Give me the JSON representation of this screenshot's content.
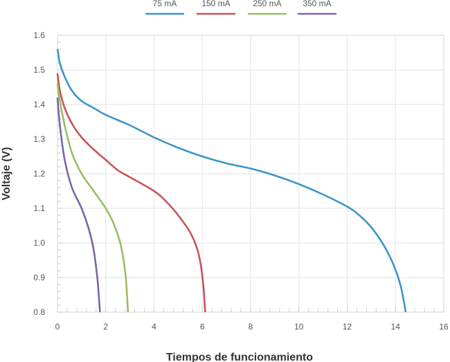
{
  "chart_data": {
    "type": "line",
    "xlabel": "Tiempos de funcionamiento",
    "ylabel": "Voltaje (V)",
    "xlim": [
      0,
      16
    ],
    "ylim": [
      0.8,
      1.6
    ],
    "x_ticks": [
      "0",
      "2",
      "4",
      "6",
      "8",
      "10",
      "12",
      "14",
      "16"
    ],
    "y_ticks": [
      "0.8",
      "0.9",
      "1.0",
      "1.1",
      "1.2",
      "1.3",
      "1.4",
      "1.5",
      "1.6"
    ],
    "grid": true,
    "legend_position": "top",
    "series": [
      {
        "name": "75 mA",
        "color": "#3b95c9",
        "x": [
          0,
          0.1,
          0.3,
          0.6,
          1,
          1.5,
          2,
          3,
          4,
          5,
          6,
          7,
          8,
          9,
          10,
          11,
          12,
          12.5,
          13,
          13.5,
          13.9,
          14.2,
          14.35,
          14.4,
          14.42
        ],
        "y": [
          1.56,
          1.52,
          1.48,
          1.44,
          1.41,
          1.39,
          1.37,
          1.34,
          1.305,
          1.275,
          1.25,
          1.23,
          1.215,
          1.195,
          1.17,
          1.14,
          1.105,
          1.08,
          1.045,
          0.995,
          0.94,
          0.88,
          0.83,
          0.81,
          0.8
        ]
      },
      {
        "name": "150 mA",
        "color": "#c9525a",
        "x": [
          0,
          0.1,
          0.3,
          0.6,
          1,
          1.5,
          2,
          2.5,
          3,
          4,
          4.5,
          5,
          5.5,
          5.8,
          5.95,
          6.05,
          6.1,
          6.12
        ],
        "y": [
          1.49,
          1.44,
          1.39,
          1.345,
          1.305,
          1.27,
          1.24,
          1.21,
          1.19,
          1.15,
          1.12,
          1.08,
          1.03,
          0.98,
          0.93,
          0.87,
          0.82,
          0.8
        ]
      },
      {
        "name": "250 mA",
        "color": "#99bd63",
        "x": [
          0,
          0.1,
          0.3,
          0.6,
          1,
          1.5,
          2,
          2.3,
          2.6,
          2.8,
          2.88,
          2.92
        ],
        "y": [
          1.46,
          1.41,
          1.34,
          1.26,
          1.2,
          1.15,
          1.1,
          1.06,
          1.0,
          0.92,
          0.85,
          0.8
        ]
      },
      {
        "name": "350 mA",
        "color": "#7a64ab",
        "x": [
          0,
          0.1,
          0.3,
          0.6,
          1,
          1.3,
          1.5,
          1.65,
          1.72,
          1.76
        ],
        "y": [
          1.42,
          1.34,
          1.24,
          1.16,
          1.1,
          1.04,
          0.98,
          0.9,
          0.84,
          0.8
        ]
      }
    ]
  }
}
